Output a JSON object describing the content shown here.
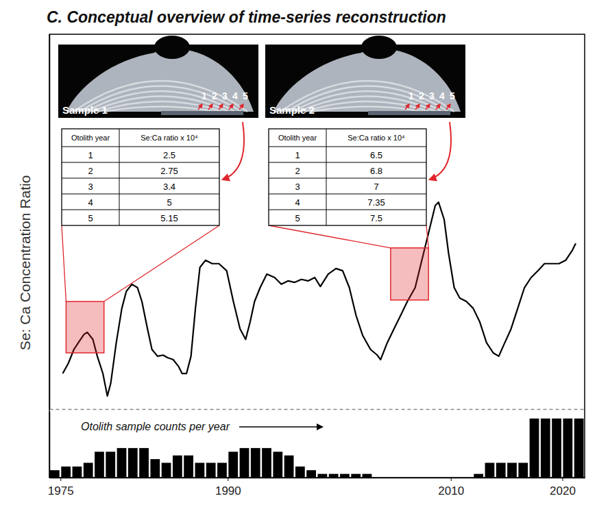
{
  "title": "C. Conceptual overview of time-series reconstruction",
  "chart_data": [
    {
      "type": "line",
      "y_label": "Se: Ca Concentration Ratio",
      "color": "#000000",
      "xlim": [
        1974,
        2022
      ],
      "ylim": [
        0,
        10
      ],
      "tick_labels": false,
      "x": [
        1975.2,
        1975.7,
        1976.2,
        1976.6,
        1977.1,
        1977.4,
        1977.9,
        1978.3,
        1978.8,
        1979.2,
        1979.5,
        1980.0,
        1980.5,
        1980.9,
        1981.4,
        1981.9,
        1982.3,
        1982.8,
        1983.2,
        1983.7,
        1984.2,
        1984.6,
        1985.1,
        1985.6,
        1985.9,
        1986.3,
        1986.7,
        1987.1,
        1987.5,
        1988.0,
        1988.6,
        1989.2,
        1989.9,
        1990.5,
        1991.1,
        1991.6,
        1992.0,
        1992.4,
        1992.9,
        1993.5,
        1994.2,
        1994.8,
        1995.4,
        1996.0,
        1996.6,
        1997.2,
        1997.8,
        1998.3,
        1999.0,
        1999.7,
        2000.3,
        2000.9,
        2001.5,
        2002.1,
        2002.8,
        2003.4,
        2003.7,
        2004.3,
        2004.9,
        2005.5,
        2006.1,
        2006.8,
        2007.4,
        2008.0,
        2008.6,
        2008.9,
        2009.4,
        2009.8,
        2010.3,
        2010.8,
        2011.4,
        2012.0,
        2012.6,
        2013.2,
        2013.8,
        2014.3,
        2014.7,
        2015.4,
        2016.0,
        2016.6,
        2017.2,
        2017.8,
        2018.4,
        2019.1,
        2019.7,
        2020.3,
        2020.9,
        2021.2
      ],
      "values": [
        0.95,
        1.22,
        1.59,
        1.77,
        1.99,
        2.05,
        1.86,
        1.41,
        0.95,
        0.35,
        0.68,
        1.77,
        2.69,
        3.14,
        3.33,
        3.24,
        2.87,
        2.14,
        1.59,
        1.41,
        1.44,
        1.37,
        1.32,
        1.13,
        0.95,
        0.95,
        1.41,
        2.69,
        3.78,
        3.97,
        3.88,
        3.88,
        3.69,
        2.87,
        2.14,
        1.86,
        2.32,
        2.87,
        3.24,
        3.6,
        3.51,
        3.33,
        3.42,
        3.38,
        3.46,
        3.42,
        3.51,
        3.27,
        3.6,
        3.75,
        3.69,
        3.24,
        2.5,
        1.96,
        1.59,
        1.44,
        1.32,
        1.77,
        2.14,
        2.5,
        2.87,
        3.24,
        3.97,
        4.7,
        5.43,
        5.52,
        5.06,
        4.15,
        3.24,
        2.96,
        2.87,
        2.69,
        2.32,
        1.77,
        1.5,
        1.41,
        1.68,
        2.14,
        2.69,
        3.24,
        3.51,
        3.69,
        3.88,
        3.88,
        3.88,
        3.97,
        4.24,
        4.42
      ],
      "highlights": [
        {
          "x": [
            1975.5,
            1978.9
          ],
          "y": [
            1.5,
            2.87
          ],
          "color": "#e0262c"
        },
        {
          "x": [
            2004.6,
            2008.0
          ],
          "y": [
            2.91,
            4.3
          ],
          "color": "#e0262c"
        }
      ],
      "samples": [
        {
          "image_label": "Sample 1",
          "increments": [
            "1",
            "2",
            "3",
            "4",
            "5"
          ],
          "table": {
            "header": [
              "Otolith year",
              "Se:Ca ratio x 10⁴"
            ],
            "rows": [
              [
                1,
                2.5
              ],
              [
                2,
                2.75
              ],
              [
                3,
                3.4
              ],
              [
                4,
                5
              ],
              [
                5,
                5.15
              ]
            ]
          }
        },
        {
          "image_label": "Sample 2",
          "increments": [
            "1",
            "2",
            "3",
            "4",
            "5"
          ],
          "table": {
            "header": [
              "Otolith year",
              "Se:Ca ratio x 10⁴"
            ],
            "rows": [
              [
                1,
                6.5
              ],
              [
                2,
                6.8
              ],
              [
                3,
                7
              ],
              [
                4,
                7.35
              ],
              [
                5,
                7.5
              ]
            ]
          }
        }
      ]
    },
    {
      "type": "bar",
      "title": "Otolith sample counts per year",
      "color": "#000000",
      "xlim": [
        1974,
        2022
      ],
      "xticks": [
        1975,
        1990,
        2010,
        2020
      ],
      "ylim": [
        0,
        18
      ],
      "tick_labels": "x",
      "x": [
        1974,
        1975,
        1976,
        1977,
        1978,
        1979,
        1980,
        1981,
        1982,
        1983,
        1984,
        1985,
        1986,
        1987,
        1988,
        1989,
        1990,
        1991,
        1992,
        1993,
        1994,
        1995,
        1996,
        1997,
        1998,
        1999,
        2000,
        2001,
        2002,
        2003,
        2004,
        2005,
        2006,
        2007,
        2008,
        2009,
        2010,
        2011,
        2012,
        2013,
        2014,
        2015,
        2016,
        2017,
        2018,
        2019,
        2020,
        2021
      ],
      "values": [
        2,
        3,
        3,
        4,
        7,
        7,
        8,
        8,
        8,
        5,
        4,
        6,
        6,
        4,
        4,
        4,
        7,
        8,
        8,
        8,
        7,
        6,
        3,
        2,
        1,
        1,
        1,
        1,
        1,
        0,
        0,
        0,
        0,
        0,
        0,
        0,
        0,
        0,
        1,
        4,
        4,
        4,
        4,
        16,
        16,
        16,
        16,
        16
      ]
    }
  ]
}
